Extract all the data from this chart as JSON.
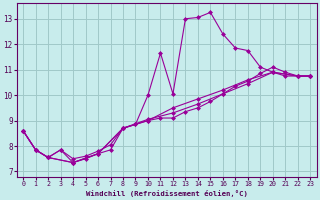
{
  "xlabel": "Windchill (Refroidissement éolien,°C)",
  "background_color": "#c8ecec",
  "grid_color": "#a0c8c8",
  "line_color": "#990099",
  "xlim": [
    -0.5,
    23.5
  ],
  "ylim": [
    6.8,
    13.6
  ],
  "yticks": [
    7,
    8,
    9,
    10,
    11,
    12,
    13
  ],
  "xticks": [
    0,
    1,
    2,
    3,
    4,
    5,
    6,
    7,
    8,
    9,
    10,
    11,
    12,
    13,
    14,
    15,
    16,
    17,
    18,
    19,
    20,
    21,
    22,
    23
  ],
  "line1": [
    [
      0,
      8.6
    ],
    [
      1,
      7.85
    ],
    [
      2,
      7.55
    ],
    [
      3,
      7.85
    ],
    [
      4,
      7.35
    ],
    [
      5,
      7.5
    ],
    [
      6,
      7.7
    ],
    [
      7,
      7.85
    ],
    [
      8,
      8.7
    ],
    [
      9,
      8.85
    ],
    [
      10,
      10.0
    ],
    [
      11,
      11.65
    ],
    [
      12,
      10.05
    ],
    [
      13,
      13.0
    ],
    [
      14,
      13.05
    ],
    [
      15,
      13.25
    ],
    [
      16,
      12.4
    ],
    [
      17,
      11.85
    ],
    [
      18,
      11.75
    ],
    [
      19,
      11.1
    ],
    [
      20,
      10.9
    ],
    [
      21,
      10.75
    ],
    [
      22,
      10.75
    ],
    [
      23,
      10.75
    ]
  ],
  "line2": [
    [
      0,
      8.6
    ],
    [
      1,
      7.85
    ],
    [
      2,
      7.55
    ],
    [
      3,
      7.85
    ],
    [
      4,
      7.5
    ],
    [
      5,
      7.6
    ],
    [
      6,
      7.8
    ],
    [
      7,
      8.05
    ],
    [
      8,
      8.7
    ],
    [
      9,
      8.85
    ],
    [
      10,
      9.0
    ],
    [
      11,
      9.1
    ],
    [
      12,
      9.1
    ],
    [
      13,
      9.35
    ],
    [
      14,
      9.5
    ],
    [
      15,
      9.75
    ],
    [
      16,
      10.05
    ],
    [
      17,
      10.35
    ],
    [
      18,
      10.55
    ],
    [
      19,
      10.85
    ],
    [
      20,
      11.1
    ],
    [
      21,
      10.9
    ],
    [
      22,
      10.75
    ],
    [
      23,
      10.75
    ]
  ],
  "line3": [
    [
      0,
      8.6
    ],
    [
      1,
      7.85
    ],
    [
      2,
      7.55
    ],
    [
      4,
      7.35
    ],
    [
      6,
      7.7
    ],
    [
      8,
      8.7
    ],
    [
      10,
      9.0
    ],
    [
      12,
      9.5
    ],
    [
      14,
      9.85
    ],
    [
      16,
      10.2
    ],
    [
      18,
      10.6
    ],
    [
      20,
      10.9
    ],
    [
      22,
      10.75
    ],
    [
      23,
      10.75
    ]
  ],
  "line4": [
    [
      0,
      8.6
    ],
    [
      1,
      7.85
    ],
    [
      2,
      7.55
    ],
    [
      4,
      7.35
    ],
    [
      6,
      7.7
    ],
    [
      8,
      8.7
    ],
    [
      10,
      9.05
    ],
    [
      12,
      9.3
    ],
    [
      14,
      9.65
    ],
    [
      16,
      10.05
    ],
    [
      18,
      10.45
    ],
    [
      20,
      10.9
    ],
    [
      22,
      10.75
    ],
    [
      23,
      10.75
    ]
  ]
}
